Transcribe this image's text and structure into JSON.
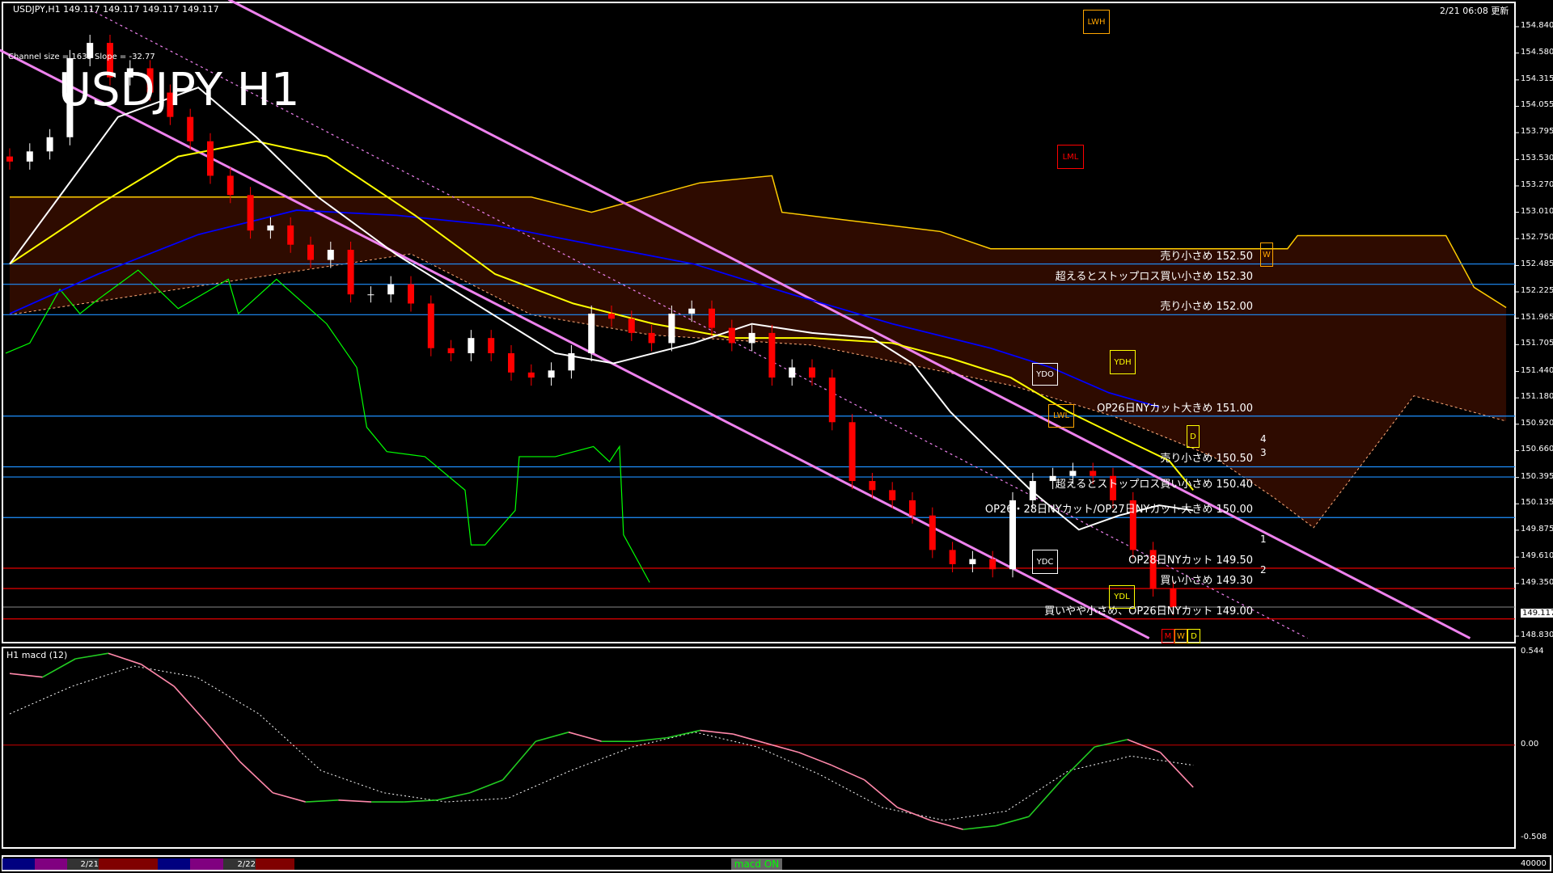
{
  "header": {
    "symbol_line": "USDJPY,H1  149.117 149.117 149.117 149.117",
    "big_title": "USDJPY H1",
    "channel_info": "Channel size = 1635 Slope = -32.77",
    "updated": "2/21 06:08 更新"
  },
  "price_axis": {
    "ticks": [
      "154.840",
      "154.580",
      "154.315",
      "154.055",
      "153.795",
      "153.530",
      "153.270",
      "153.010",
      "152.750",
      "152.485",
      "152.225",
      "151.965",
      "151.705",
      "151.440",
      "151.180",
      "150.920",
      "150.660",
      "150.395",
      "150.135",
      "149.875",
      "149.610",
      "149.350",
      "148.830"
    ],
    "current": "149.117"
  },
  "level_labels": [
    {
      "text": "売り小さめ 152.50",
      "price": 152.5,
      "color": "#1e90ff"
    },
    {
      "text": "超えるとストップロス買い小さめ 152.30",
      "price": 152.3,
      "color": "#1e90ff"
    },
    {
      "text": "売り小さめ 152.00",
      "price": 152.0,
      "color": "#1e90ff"
    },
    {
      "text": "OP26日NYカット大きめ 151.00",
      "price": 151.0,
      "color": "#1e90ff"
    },
    {
      "text": "売り小さめ 150.50",
      "price": 150.5,
      "color": "#1e90ff"
    },
    {
      "text": "超えるとストップロス買い小さめ 150.40",
      "price": 150.4,
      "color": "#1e90ff"
    },
    {
      "text": "OP26・28日NYカット/OP27日NYカット大きめ 150.00",
      "price": 150.0,
      "color": "#1e90ff"
    },
    {
      "text": "OP28日NYカット 149.50",
      "price": 149.5,
      "color": "#ff0000"
    },
    {
      "text": "買い小さめ 149.30",
      "price": 149.3,
      "color": "#ff0000"
    },
    {
      "text": "買いやや小さめ、OP26日NYカット 149.00",
      "price": 149.0,
      "color": "#ff0000"
    }
  ],
  "markers": {
    "lwh": "LWH",
    "lml": "LML",
    "ydo": "YDO",
    "ydh": "YDH",
    "lwl": "LWL",
    "ydc": "YDC",
    "ydl": "YDL",
    "w_top": "W",
    "d_mid": "D",
    "m_bot": "M",
    "w_bot": "W",
    "d_bot": "D",
    "wave_labels": [
      "4",
      "3",
      "1",
      "2"
    ]
  },
  "colors": {
    "bull": "#ffffff",
    "bear": "#ff0000",
    "ma_fast": "#ffffff",
    "ma_mid": "#ffff00",
    "ma_slow": "#0000ff",
    "chikou": "#00ff00",
    "channel": "#ee82ee",
    "macd_up": "#22cc22",
    "macd_down": "#ff88aa",
    "grid_blue": "#1e90ff",
    "grid_red": "#ff0000"
  },
  "chart_data": [
    {
      "type": "candlestick",
      "title": "USDJPY H1",
      "ylim": [
        148.83,
        154.84
      ],
      "close": [
        153.51,
        153.61,
        153.75,
        154.53,
        154.68,
        154.34,
        154.43,
        154.19,
        153.95,
        153.71,
        153.37,
        153.18,
        152.83,
        152.88,
        152.69,
        152.54,
        152.64,
        152.2,
        152.2,
        152.3,
        152.11,
        151.67,
        151.62,
        151.77,
        151.62,
        151.43,
        151.38,
        151.45,
        151.62,
        152.01,
        151.96,
        151.82,
        151.72,
        152.01,
        152.06,
        151.87,
        151.72,
        151.82,
        151.38,
        151.48,
        151.38,
        150.94,
        150.36,
        150.27,
        150.17,
        150.02,
        149.68,
        149.54,
        149.59,
        149.49,
        150.17,
        150.36,
        150.41,
        150.46,
        150.41,
        150.17,
        149.68,
        149.3,
        149.117
      ],
      "ma_white": [
        [
          0,
          152.5
        ],
        [
          2.5,
          153.17
        ],
        [
          5.4,
          153.95
        ],
        [
          9.4,
          154.24
        ],
        [
          12.3,
          153.75
        ],
        [
          15.3,
          153.17
        ],
        [
          19.3,
          152.59
        ],
        [
          23.2,
          152.11
        ],
        [
          27.2,
          151.62
        ],
        [
          30.1,
          151.52
        ],
        [
          34.1,
          151.72
        ],
        [
          37,
          151.91
        ],
        [
          40,
          151.82
        ],
        [
          43,
          151.77
        ],
        [
          45,
          151.52
        ],
        [
          46.9,
          151.04
        ],
        [
          48.9,
          150.65
        ],
        [
          50.9,
          150.27
        ],
        [
          53.3,
          149.88
        ],
        [
          55.3,
          150.02
        ],
        [
          57.3,
          150.12
        ],
        [
          59,
          150.07
        ]
      ],
      "ma_yellow": [
        [
          0,
          152.5
        ],
        [
          4.4,
          153.08
        ],
        [
          8.4,
          153.56
        ],
        [
          12.3,
          153.71
        ],
        [
          15.8,
          153.56
        ],
        [
          20.2,
          152.98
        ],
        [
          24.2,
          152.4
        ],
        [
          28.1,
          152.11
        ],
        [
          32.1,
          151.91
        ],
        [
          36,
          151.77
        ],
        [
          40,
          151.77
        ],
        [
          44,
          151.72
        ],
        [
          46.9,
          151.57
        ],
        [
          49.9,
          151.38
        ],
        [
          52.8,
          151.04
        ],
        [
          55.8,
          150.75
        ],
        [
          57.8,
          150.56
        ],
        [
          59,
          150.27
        ]
      ],
      "ma_blue": [
        [
          0,
          152.01
        ],
        [
          4.4,
          152.4
        ],
        [
          9.4,
          152.79
        ],
        [
          14.3,
          153.03
        ],
        [
          19.3,
          152.98
        ],
        [
          24.2,
          152.88
        ],
        [
          29.1,
          152.69
        ],
        [
          34.1,
          152.5
        ],
        [
          39,
          152.2
        ],
        [
          44,
          151.91
        ],
        [
          48.9,
          151.67
        ],
        [
          51.9,
          151.48
        ],
        [
          54.8,
          151.23
        ],
        [
          57.3,
          151.09
        ]
      ],
      "span_a": [
        [
          0,
          153.16
        ],
        [
          26,
          153.16
        ],
        [
          29,
          153.01
        ],
        [
          34.4,
          153.3
        ],
        [
          38,
          153.37
        ],
        [
          38.5,
          153.01
        ],
        [
          46.4,
          152.82
        ],
        [
          48.9,
          152.65
        ],
        [
          63.7,
          152.65
        ],
        [
          64.2,
          152.78
        ],
        [
          71.6,
          152.78
        ],
        [
          73,
          152.27
        ],
        [
          74.6,
          152.07
        ]
      ],
      "span_b": [
        [
          0,
          152.0
        ],
        [
          10,
          152.3
        ],
        [
          20,
          152.6
        ],
        [
          26,
          152.0
        ],
        [
          32,
          151.8
        ],
        [
          40,
          151.7
        ],
        [
          50,
          151.3
        ],
        [
          55,
          151.0
        ],
        [
          60,
          150.6
        ],
        [
          63,
          150.2
        ],
        [
          65,
          149.9
        ],
        [
          70,
          151.2
        ],
        [
          74.6,
          150.95
        ]
      ],
      "chikou": [
        [
          -0.2,
          151.62
        ],
        [
          1,
          151.72
        ],
        [
          2.5,
          152.25
        ],
        [
          3.5,
          152.01
        ],
        [
          4.4,
          152.15
        ],
        [
          6.4,
          152.44
        ],
        [
          8.4,
          152.06
        ],
        [
          10.9,
          152.35
        ],
        [
          11.4,
          152.01
        ],
        [
          13.3,
          152.35
        ],
        [
          15.8,
          151.91
        ],
        [
          17.3,
          151.48
        ],
        [
          17.8,
          150.89
        ],
        [
          18.8,
          150.65
        ],
        [
          20.7,
          150.6
        ],
        [
          22.7,
          150.27
        ],
        [
          23,
          149.73
        ],
        [
          23.7,
          149.73
        ],
        [
          25.2,
          150.07
        ],
        [
          25.4,
          150.6
        ],
        [
          27.2,
          150.6
        ],
        [
          29.1,
          150.7
        ],
        [
          29.9,
          150.55
        ],
        [
          30.4,
          150.7
        ],
        [
          30.6,
          149.83
        ],
        [
          31.9,
          149.36
        ]
      ],
      "channel_lines": [
        [
          [
            10.9,
            155.11
          ],
          [
            72.8,
            148.81
          ]
        ],
        [
          [
            -0.5,
            154.61
          ],
          [
            56.8,
            148.81
          ]
        ]
      ],
      "channel_mid": [
        [
          4,
          155.01
        ],
        [
          64.7,
          148.81
        ]
      ]
    },
    {
      "type": "line",
      "title": "H1  macd (12)",
      "ylim": [
        -0.508,
        0.544
      ],
      "ticks": [
        "0.544",
        "0.00",
        "-0.508"
      ],
      "macd": [
        0.39,
        0.37,
        0.47,
        0.5,
        0.44,
        0.32,
        0.12,
        -0.09,
        -0.26,
        -0.31,
        -0.3,
        -0.31,
        -0.31,
        -0.3,
        -0.26,
        -0.19,
        0.02,
        0.07,
        0.02,
        0.02,
        0.04,
        0.08,
        0.06,
        0.01,
        -0.04,
        -0.11,
        -0.19,
        -0.34,
        -0.41,
        -0.46,
        -0.44,
        -0.39,
        -0.19,
        -0.01,
        0.03,
        -0.04,
        -0.23
      ],
      "signal": [
        0.17,
        0.32,
        0.43,
        0.37,
        0.17,
        -0.14,
        -0.26,
        -0.31,
        -0.29,
        -0.14,
        -0.01,
        0.07,
        -0.01,
        -0.16,
        -0.34,
        -0.41,
        -0.36,
        -0.14,
        -0.06,
        -0.11
      ]
    }
  ],
  "bottom_bar": {
    "dates": [
      "2/21",
      "2/22"
    ],
    "volume_tick": "40000",
    "toggle": "macd ON"
  }
}
